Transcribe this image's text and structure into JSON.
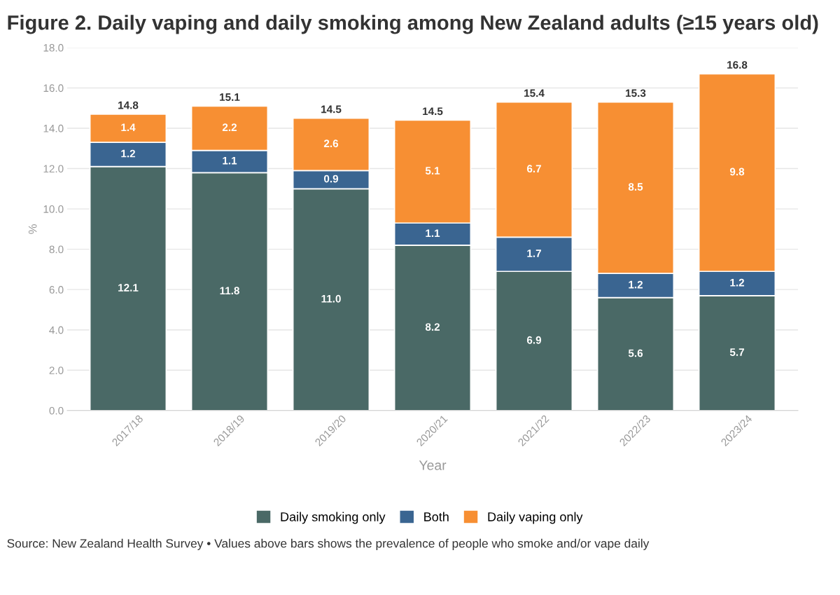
{
  "chart_data": {
    "type": "bar",
    "stacked": true,
    "title": "Figure 2. Daily vaping and daily smoking among New Zealand adults (≥15 years old)",
    "xlabel": "Year",
    "ylabel": "%",
    "categories": [
      "2017/18",
      "2018/19",
      "2019/20",
      "2020/21",
      "2021/22",
      "2022/23",
      "2023/24"
    ],
    "series": [
      {
        "name": "Daily smoking only",
        "color": "#4a6966",
        "values": [
          12.1,
          11.8,
          11.0,
          8.2,
          6.9,
          5.6,
          5.7
        ],
        "value_labels": [
          "12.1",
          "11.8",
          "11.0",
          "8.2",
          "6.9",
          "5.6",
          "5.7"
        ]
      },
      {
        "name": "Both",
        "color": "#3a6591",
        "values": [
          1.2,
          1.1,
          0.9,
          1.1,
          1.7,
          1.2,
          1.2
        ],
        "value_labels": [
          "1.2",
          "1.1",
          "0.9",
          "1.1",
          "1.7",
          "1.2",
          "1.2"
        ]
      },
      {
        "name": "Daily vaping only",
        "color": "#f78f33",
        "values": [
          1.4,
          2.2,
          2.6,
          5.1,
          6.7,
          8.5,
          9.8
        ],
        "value_labels": [
          "1.4",
          "2.2",
          "2.6",
          "5.1",
          "6.7",
          "8.5",
          "9.8"
        ]
      }
    ],
    "totals": [
      "14.8",
      "15.1",
      "14.5",
      "14.5",
      "15.4",
      "15.3",
      "16.8"
    ],
    "ylim": [
      0,
      18
    ],
    "yticks": [
      {
        "value": 0,
        "label": "0.0"
      },
      {
        "value": 2,
        "label": "2.0"
      },
      {
        "value": 4,
        "label": "4.0"
      },
      {
        "value": 6,
        "label": "6.0"
      },
      {
        "value": 8,
        "label": "8.0"
      },
      {
        "value": 10,
        "label": "10.0"
      },
      {
        "value": 12,
        "label": "12.0"
      },
      {
        "value": 14,
        "label": "14.0"
      },
      {
        "value": 16,
        "label": "16.0"
      },
      {
        "value": 18,
        "label": "18.0"
      }
    ],
    "grid": "y",
    "legend": "bottom",
    "annotations": [
      "Source: New Zealand Health Survey • Values above bars shows the prevalence of people who smoke and/or vape daily"
    ]
  }
}
